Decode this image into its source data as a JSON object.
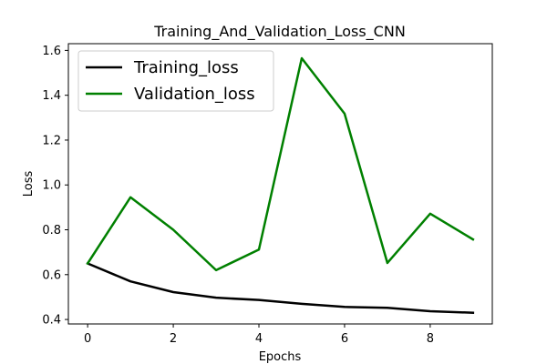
{
  "chart_data": {
    "type": "line",
    "title": "Training_And_Validation_Loss_CNN",
    "xlabel": "Epochs",
    "ylabel": "Loss",
    "x": [
      0,
      1,
      2,
      3,
      4,
      5,
      6,
      7,
      8,
      9
    ],
    "xlim": [
      -0.45,
      9.45
    ],
    "ylim": [
      0.38,
      1.63
    ],
    "xticks": [
      0,
      2,
      4,
      6,
      8
    ],
    "yticks": [
      0.4,
      0.6,
      0.8,
      1.0,
      1.2,
      1.4,
      1.6
    ],
    "xtick_labels": [
      "0",
      "2",
      "4",
      "6",
      "8"
    ],
    "ytick_labels": [
      "0.4",
      "0.6",
      "0.8",
      "1.0",
      "1.2",
      "1.4",
      "1.6"
    ],
    "grid": false,
    "legend_position": "top-left",
    "series": [
      {
        "name": "Training_loss",
        "color": "#000000",
        "values": [
          0.65,
          0.57,
          0.522,
          0.497,
          0.487,
          0.47,
          0.456,
          0.452,
          0.437,
          0.43
        ]
      },
      {
        "name": "Validation_loss",
        "color": "#008000",
        "values": [
          0.65,
          0.945,
          0.8,
          0.62,
          0.712,
          1.565,
          1.318,
          0.652,
          0.872,
          0.757
        ]
      }
    ]
  }
}
